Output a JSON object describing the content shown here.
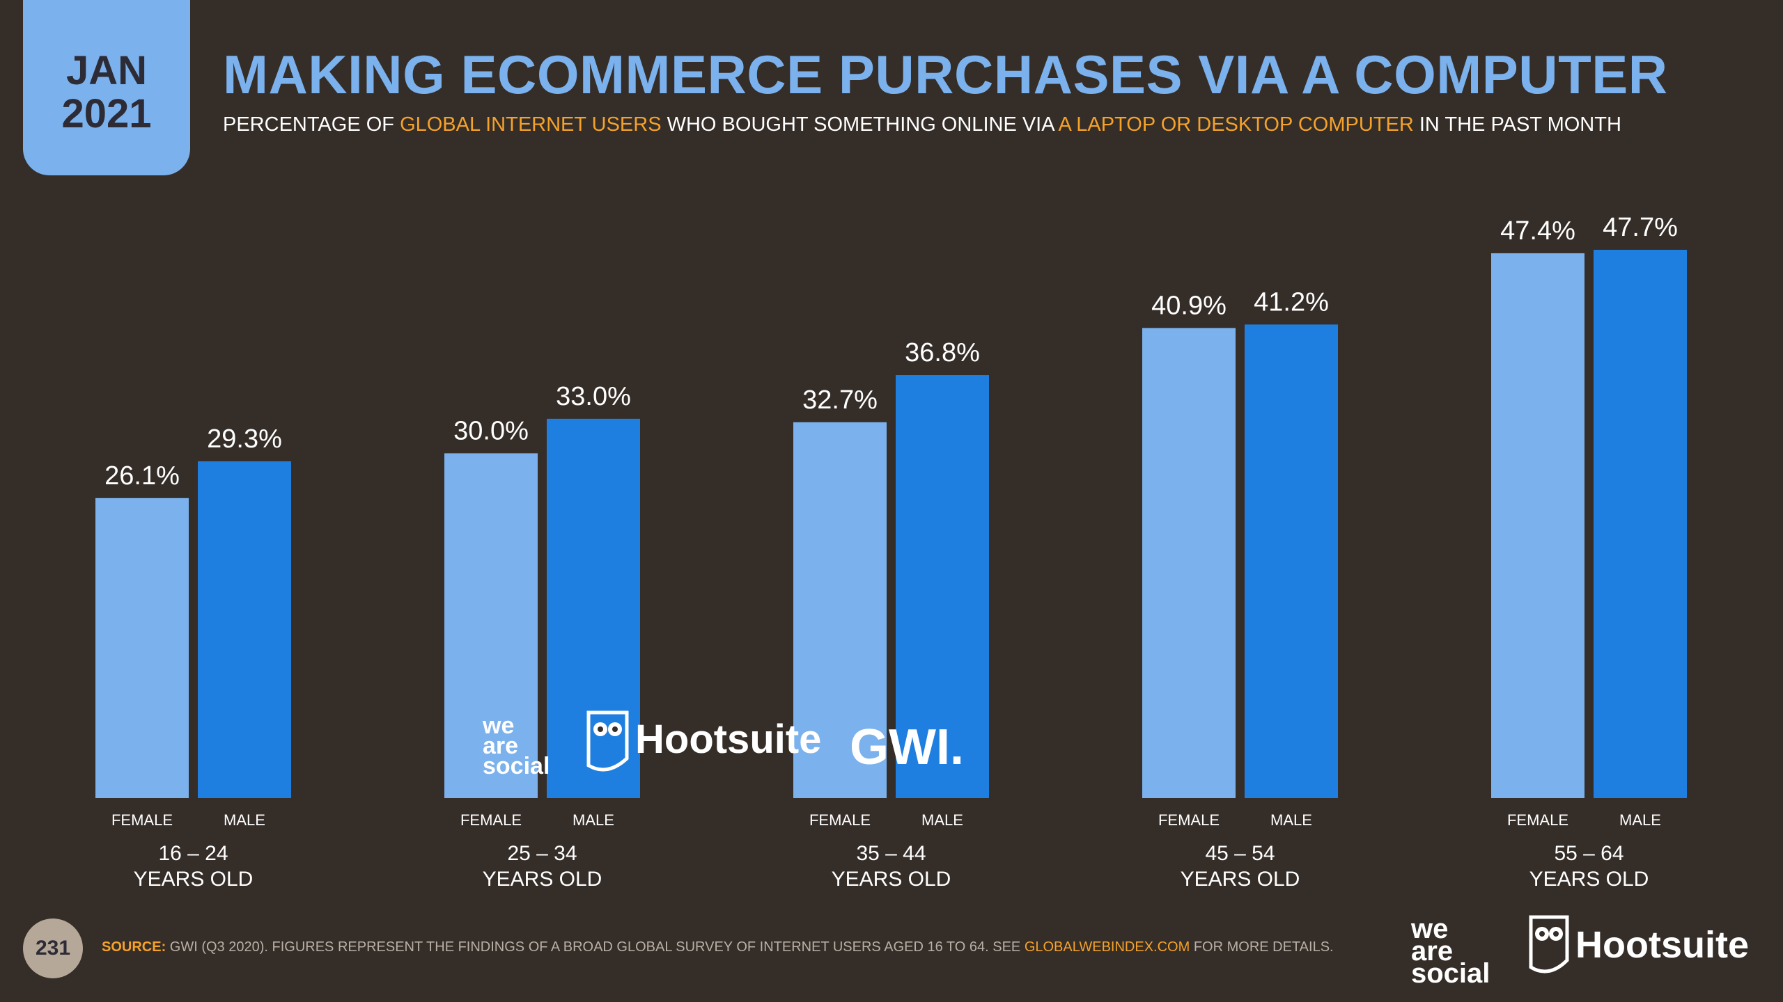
{
  "header": {
    "date_month": "JAN",
    "date_year": "2021",
    "title": "MAKING ECOMMERCE PURCHASES VIA A COMPUTER",
    "subtitle_parts": [
      {
        "text": "PERCENTAGE OF ",
        "highlight": false
      },
      {
        "text": "GLOBAL INTERNET USERS",
        "highlight": true
      },
      {
        "text": " WHO BOUGHT SOMETHING ONLINE VIA ",
        "highlight": false
      },
      {
        "text": "A LAPTOP OR DESKTOP COMPUTER",
        "highlight": true
      },
      {
        "text": " IN THE PAST MONTH",
        "highlight": false
      }
    ]
  },
  "chart_data": {
    "type": "bar",
    "categories": [
      "16 – 24|YEARS OLD",
      "25 – 34|YEARS OLD",
      "35 – 44|YEARS OLD",
      "45 – 54|YEARS OLD",
      "55 – 64|YEARS OLD"
    ],
    "series": [
      {
        "name": "FEMALE",
        "color": "#7BB1EC",
        "values": [
          26.1,
          30.0,
          32.7,
          40.9,
          47.4
        ],
        "labels": [
          "26.1%",
          "30.0%",
          "32.7%",
          "40.9%",
          "47.4%"
        ]
      },
      {
        "name": "MALE",
        "color": "#1F7FE0",
        "values": [
          29.3,
          33.0,
          36.8,
          41.2,
          47.7
        ],
        "labels": [
          "29.3%",
          "33.0%",
          "36.8%",
          "41.2%",
          "47.7%"
        ]
      }
    ],
    "ylim": [
      0,
      47.7
    ]
  },
  "watermark": {
    "we_are_social": [
      "we",
      "are",
      "social"
    ],
    "hootsuite": "Hootsuite",
    "gwi": "GWI."
  },
  "footer": {
    "page_number": "231",
    "source_label": "SOURCE:",
    "source_text": " GWI (Q3 2020). FIGURES REPRESENT THE FINDINGS OF A BROAD GLOBAL SURVEY OF INTERNET USERS AGED 16 TO 64. SEE ",
    "source_url": "GLOBALWEBINDEX.COM",
    "source_tail": " FOR MORE DETAILS.",
    "logo_we_are_social": [
      "we",
      "are",
      "social"
    ],
    "logo_hootsuite": "Hootsuite"
  },
  "colors": {
    "background": "#352D28",
    "accent_light_blue": "#7BB1EC",
    "accent_blue": "#1F7FE0",
    "highlight_orange": "#F5A22A"
  }
}
